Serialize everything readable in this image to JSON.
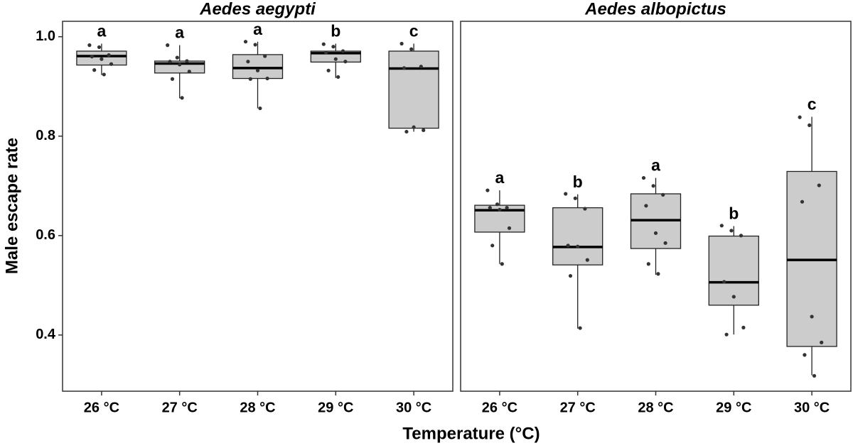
{
  "chart_data": {
    "type": "box",
    "xlabel": "Temperature (°C)",
    "ylabel": "Male escape rate",
    "ylim": [
      0.287,
      1.031
    ],
    "yticks": [
      0.4,
      0.6,
      0.8,
      {
        "value": 1.0,
        "label": "1.0"
      }
    ],
    "box_color": "#cccccc",
    "point_color": "#333333",
    "facets": [
      {
        "title": "Aedes aegypti",
        "categories": [
          "26 °C",
          "27 °C",
          "28 °C",
          "29 °C",
          "30 °C"
        ],
        "boxes": [
          {
            "min": 0.923,
            "q1": 0.943,
            "median": 0.961,
            "q3": 0.971,
            "max": 0.986
          },
          {
            "min": 0.876,
            "q1": 0.927,
            "median": 0.946,
            "q3": 0.951,
            "max": 0.983
          },
          {
            "min": 0.856,
            "q1": 0.916,
            "median": 0.937,
            "q3": 0.964,
            "max": 0.99
          },
          {
            "min": 0.917,
            "q1": 0.949,
            "median": 0.967,
            "q3": 0.971,
            "max": 0.986
          },
          {
            "min": 0.809,
            "q1": 0.816,
            "median": 0.936,
            "q3": 0.971,
            "max": 0.986
          }
        ],
        "points": [
          [
            0.983,
            0.979,
            0.963,
            0.96,
            0.955,
            0.945,
            0.933,
            0.924
          ],
          [
            0.983,
            0.958,
            0.951,
            0.95,
            0.944,
            0.93,
            0.915,
            0.877
          ],
          [
            0.99,
            0.984,
            0.961,
            0.95,
            0.932,
            0.916,
            0.915,
            0.856
          ],
          [
            0.985,
            0.98,
            0.971,
            0.968,
            0.955,
            0.95,
            0.932,
            0.919
          ],
          [
            0.986,
            0.975,
            0.94,
            0.937,
            0.818,
            0.812,
            0.809
          ]
        ],
        "letters": [
          "a",
          "a",
          "a",
          "b",
          "c"
        ]
      },
      {
        "title": "Aedes albopictus",
        "categories": [
          "26 °C",
          "27 °C",
          "28 °C",
          "29 °C",
          "30 °C"
        ],
        "boxes": [
          {
            "min": 0.543,
            "q1": 0.607,
            "median": 0.651,
            "q3": 0.661,
            "max": 0.691
          },
          {
            "min": 0.413,
            "q1": 0.541,
            "median": 0.577,
            "q3": 0.656,
            "max": 0.683
          },
          {
            "min": 0.521,
            "q1": 0.574,
            "median": 0.631,
            "q3": 0.684,
            "max": 0.716
          },
          {
            "min": 0.401,
            "q1": 0.46,
            "median": 0.506,
            "q3": 0.599,
            "max": 0.619
          },
          {
            "min": 0.319,
            "q1": 0.377,
            "median": 0.551,
            "q3": 0.729,
            "max": 0.839
          }
        ],
        "points": [
          [
            0.691,
            0.663,
            0.656,
            0.656,
            0.652,
            0.615,
            0.58,
            0.543
          ],
          [
            0.684,
            0.675,
            0.654,
            0.58,
            0.578,
            0.551,
            0.519,
            0.414
          ],
          [
            0.716,
            0.7,
            0.682,
            0.66,
            0.605,
            0.585,
            0.543,
            0.523
          ],
          [
            0.62,
            0.61,
            0.6,
            0.507,
            0.477,
            0.415,
            0.401
          ],
          [
            0.838,
            0.822,
            0.701,
            0.668,
            0.437,
            0.385,
            0.36,
            0.318
          ]
        ],
        "letters": [
          "a",
          "b",
          "a",
          "b",
          "c"
        ]
      }
    ]
  }
}
